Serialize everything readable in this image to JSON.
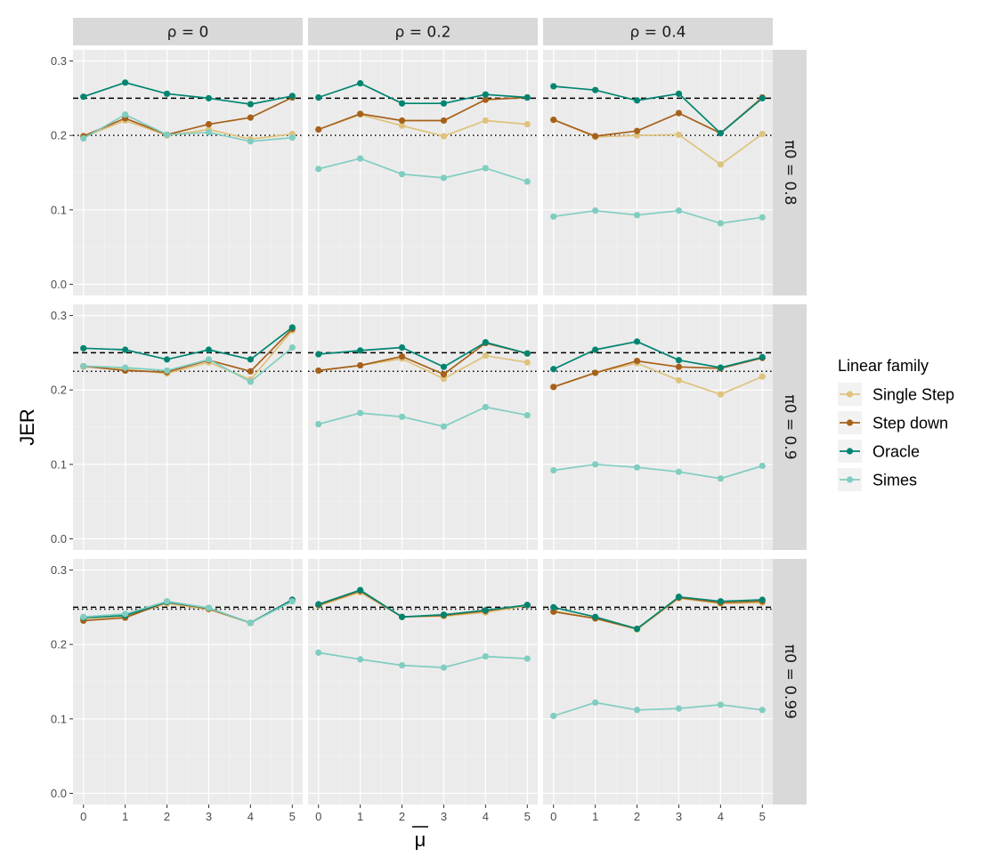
{
  "chart_data": {
    "type": "line",
    "facet_cols": [
      "ρ = 0",
      "ρ = 0.2",
      "ρ = 0.4"
    ],
    "facet_rows": [
      "π0 = 0.8",
      "π0 = 0.9",
      "π0 = 0.99"
    ],
    "xlabel": "μ",
    "ylabel": "JER",
    "x": [
      0,
      1,
      2,
      3,
      4,
      5
    ],
    "xlim": [
      -0.25,
      5.25
    ],
    "ylim": [
      -0.015,
      0.315
    ],
    "yticks": [
      0.0,
      0.1,
      0.2,
      0.3
    ],
    "ytick_labels": [
      "0.0",
      "0.1",
      "0.2",
      "0.3"
    ],
    "xtick_labels": [
      "0",
      "1",
      "2",
      "3",
      "4",
      "5"
    ],
    "grid": true,
    "legend": {
      "title": "Linear family",
      "placement": "right",
      "entries": [
        "Single Step",
        "Step down",
        "Oracle",
        "Simes"
      ]
    },
    "colors": {
      "Single Step": "#dfc27d",
      "Step down": "#a6611a",
      "Oracle": "#018571",
      "Simes": "#80cdc1"
    },
    "reference_lines": {
      "dashed": 0.25,
      "dotted": [
        0.2,
        0.225,
        0.2475
      ]
    },
    "panels": [
      [
        {
          "Single Step": [
            0.198,
            0.22,
            0.2,
            0.208,
            0.195,
            0.202
          ],
          "Step down": [
            0.199,
            0.223,
            0.201,
            0.215,
            0.224,
            0.251
          ],
          "Oracle": [
            0.252,
            0.271,
            0.256,
            0.25,
            0.242,
            0.253
          ],
          "Simes": [
            0.196,
            0.228,
            0.201,
            0.204,
            0.192,
            0.197
          ]
        },
        {
          "Single Step": [
            0.208,
            0.228,
            0.213,
            0.199,
            0.22,
            0.215
          ],
          "Step down": [
            0.208,
            0.229,
            0.22,
            0.22,
            0.248,
            0.251
          ],
          "Oracle": [
            0.251,
            0.27,
            0.243,
            0.243,
            0.255,
            0.251
          ],
          "Simes": [
            0.155,
            0.169,
            0.148,
            0.143,
            0.156,
            0.138
          ]
        },
        {
          "Single Step": [
            0.221,
            0.198,
            0.2,
            0.201,
            0.161,
            0.202
          ],
          "Step down": [
            0.221,
            0.199,
            0.206,
            0.23,
            0.203,
            0.251
          ],
          "Oracle": [
            0.266,
            0.261,
            0.247,
            0.256,
            0.203,
            0.25
          ],
          "Simes": [
            0.091,
            0.099,
            0.093,
            0.099,
            0.082,
            0.09
          ]
        }
      ],
      [
        {
          "Single Step": [
            0.231,
            0.228,
            0.222,
            0.237,
            0.214,
            0.28
          ],
          "Step down": [
            0.232,
            0.226,
            0.224,
            0.24,
            0.225,
            0.282
          ],
          "Oracle": [
            0.256,
            0.254,
            0.241,
            0.254,
            0.241,
            0.284
          ],
          "Simes": [
            0.232,
            0.23,
            0.226,
            0.241,
            0.211,
            0.257
          ]
        },
        {
          "Single Step": [
            0.226,
            0.233,
            0.242,
            0.215,
            0.246,
            0.237
          ],
          "Step down": [
            0.226,
            0.233,
            0.245,
            0.221,
            0.263,
            0.249
          ],
          "Oracle": [
            0.248,
            0.253,
            0.257,
            0.231,
            0.264,
            0.249
          ],
          "Simes": [
            0.154,
            0.169,
            0.164,
            0.151,
            0.177,
            0.166
          ]
        },
        {
          "Single Step": [
            0.204,
            0.223,
            0.236,
            0.213,
            0.194,
            0.218
          ],
          "Step down": [
            0.204,
            0.223,
            0.239,
            0.231,
            0.229,
            0.243
          ],
          "Oracle": [
            0.228,
            0.254,
            0.265,
            0.24,
            0.23,
            0.244
          ],
          "Simes": [
            0.092,
            0.1,
            0.096,
            0.09,
            0.081,
            0.098
          ]
        }
      ],
      [
        {
          "Single Step": [
            0.235,
            0.238,
            0.255,
            0.247,
            0.229,
            0.259
          ],
          "Step down": [
            0.232,
            0.236,
            0.257,
            0.248,
            0.229,
            0.26
          ],
          "Oracle": [
            0.236,
            0.239,
            0.257,
            0.249,
            0.229,
            0.26
          ],
          "Simes": [
            0.237,
            0.241,
            0.258,
            0.249,
            0.229,
            0.258
          ]
        },
        {
          "Single Step": [
            0.252,
            0.27,
            0.237,
            0.238,
            0.243,
            0.252
          ],
          "Step down": [
            0.253,
            0.272,
            0.237,
            0.239,
            0.245,
            0.253
          ],
          "Oracle": [
            0.254,
            0.273,
            0.237,
            0.24,
            0.246,
            0.253
          ],
          "Simes": [
            0.189,
            0.18,
            0.172,
            0.169,
            0.184,
            0.181
          ]
        },
        {
          "Single Step": [
            0.245,
            0.235,
            0.22,
            0.262,
            0.255,
            0.256
          ],
          "Step down": [
            0.244,
            0.235,
            0.221,
            0.263,
            0.256,
            0.258
          ],
          "Oracle": [
            0.25,
            0.237,
            0.221,
            0.264,
            0.258,
            0.26
          ],
          "Simes": [
            0.104,
            0.122,
            0.112,
            0.114,
            0.119,
            0.112
          ]
        }
      ]
    ]
  }
}
